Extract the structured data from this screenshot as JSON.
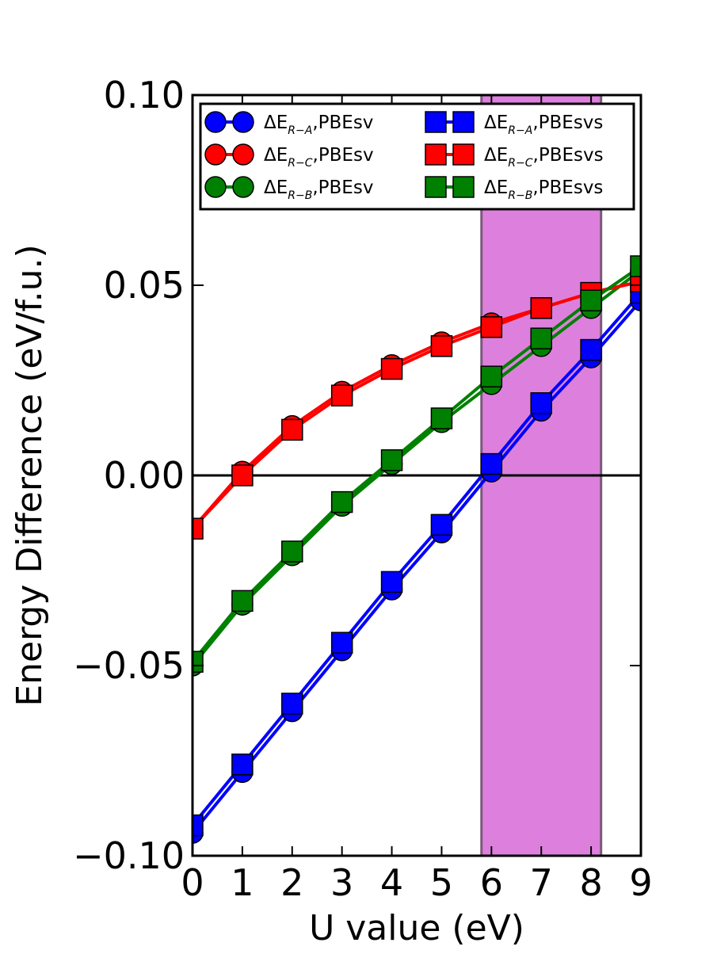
{
  "chart_data": {
    "type": "line",
    "xlabel": "U value (eV)",
    "ylabel": "Energy Difference (eV/f.u.)",
    "xlim": [
      0,
      9
    ],
    "ylim": [
      -0.1,
      0.1
    ],
    "xticks": [
      0,
      1,
      2,
      3,
      4,
      5,
      6,
      7,
      8,
      9
    ],
    "xtick_labels": [
      "0",
      "1",
      "2",
      "3",
      "4",
      "5",
      "6",
      "7",
      "8",
      "9"
    ],
    "yticks": [
      -0.1,
      -0.05,
      0.0,
      0.05,
      0.1
    ],
    "ytick_labels": [
      "−0.10",
      "−0.05",
      "0.00",
      "0.05",
      "0.10"
    ],
    "grid": false,
    "legend_position": "top",
    "reference_line": {
      "y": 0.0,
      "color": "#000000"
    },
    "shaded_region": {
      "x": [
        5.8,
        8.2
      ],
      "color": "#dd80dd"
    },
    "x": [
      0,
      1,
      2,
      3,
      4,
      5,
      6,
      7,
      8,
      9
    ],
    "series": [
      {
        "name": "ΔE",
        "sub": "R−A",
        "suffix": ",PBEsv",
        "color": "#0000ff",
        "marker": "circle",
        "values": [
          -0.094,
          -0.078,
          -0.062,
          -0.046,
          -0.03,
          -0.015,
          0.001,
          0.017,
          0.031,
          0.046
        ]
      },
      {
        "name": "ΔE",
        "sub": "R−C",
        "suffix": ",PBEsv",
        "color": "#ff0000",
        "marker": "circle",
        "values": [
          -0.014,
          0.001,
          0.013,
          0.022,
          0.029,
          0.035,
          0.04,
          0.044,
          0.048,
          0.051
        ]
      },
      {
        "name": "ΔE",
        "sub": "R−B",
        "suffix": ",PBEsv",
        "color": "#008000",
        "marker": "circle",
        "values": [
          -0.05,
          -0.034,
          -0.021,
          -0.008,
          0.003,
          0.014,
          0.024,
          0.034,
          0.044,
          0.054
        ]
      },
      {
        "name": "ΔE",
        "sub": "R−A",
        "suffix": ",PBEsvs",
        "color": "#0000ff",
        "marker": "square",
        "values": [
          -0.092,
          -0.076,
          -0.06,
          -0.044,
          -0.028,
          -0.013,
          0.003,
          0.019,
          0.033,
          0.048
        ]
      },
      {
        "name": "ΔE",
        "sub": "R−C",
        "suffix": ",PBEsvs",
        "color": "#ff0000",
        "marker": "square",
        "values": [
          -0.014,
          0.0,
          0.012,
          0.021,
          0.028,
          0.034,
          0.039,
          0.044,
          0.048,
          0.051
        ]
      },
      {
        "name": "ΔE",
        "sub": "R−B",
        "suffix": ",PBEsvs",
        "color": "#008000",
        "marker": "square",
        "values": [
          -0.049,
          -0.033,
          -0.02,
          -0.007,
          0.004,
          0.015,
          0.026,
          0.036,
          0.046,
          0.055
        ]
      }
    ]
  }
}
